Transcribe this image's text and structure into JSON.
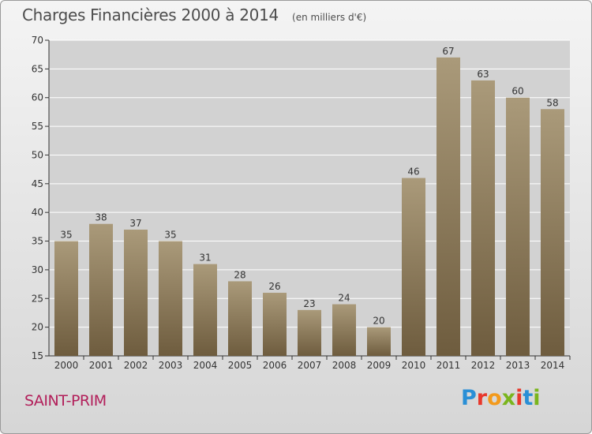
{
  "header": {
    "title": "Charges Financières 2000 à 2014",
    "unit": "(en milliers d'€)"
  },
  "footer": {
    "commune": "SAINT-PRIM",
    "logo": {
      "text": "Proxiti",
      "letter_colors": [
        "#2a8fd6",
        "#e8382c",
        "#f39a1c",
        "#7ab51d",
        "#e8382c",
        "#2a8fd6",
        "#7ab51d"
      ]
    }
  },
  "chart_data": {
    "type": "bar",
    "categories": [
      "2000",
      "2001",
      "2002",
      "2003",
      "2004",
      "2005",
      "2006",
      "2007",
      "2008",
      "2009",
      "2010",
      "2011",
      "2012",
      "2013",
      "2014"
    ],
    "values": [
      35,
      38,
      37,
      35,
      31,
      28,
      26,
      23,
      24,
      20,
      46,
      67,
      63,
      60,
      58
    ],
    "ylim": [
      15,
      70
    ],
    "yticks": [
      15,
      20,
      25,
      30,
      35,
      40,
      45,
      50,
      55,
      60,
      65,
      70
    ],
    "grid": true,
    "data_labels": true,
    "colors": {
      "bar_top": "#aa9a7a",
      "bar_bottom": "#6e5c3e",
      "grid": "#ffffff",
      "plot_bg": "#d2d2d2"
    }
  }
}
